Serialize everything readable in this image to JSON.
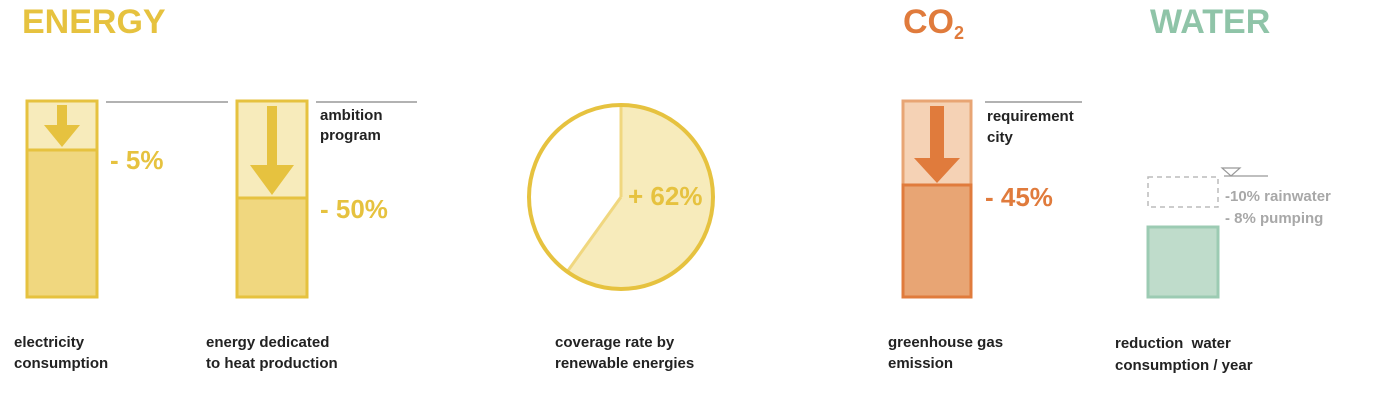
{
  "sections": [
    {
      "title": "ENERGY"
    },
    {
      "title": "CO",
      "subscript": "2"
    },
    {
      "title": "WATER"
    }
  ],
  "items": [
    {
      "value_label": "- 5%",
      "caption": [
        "electricity",
        "consumption"
      ]
    },
    {
      "value_label": "- 50%",
      "note": [
        "ambition",
        "program"
      ],
      "caption": [
        "energy dedicated",
        "to heat production"
      ]
    },
    {
      "value_label": "+ 62%",
      "caption": [
        "coverage rate by",
        "renewable energies"
      ]
    },
    {
      "value_label": "- 45%",
      "note": [
        "requirement",
        "city"
      ],
      "caption": [
        "greenhouse gas",
        "emission"
      ]
    },
    {
      "notes": [
        "-10% rainwater",
        "- 8% pumping"
      ],
      "caption": [
        "reduction  water",
        "consumption / year"
      ]
    }
  ]
}
